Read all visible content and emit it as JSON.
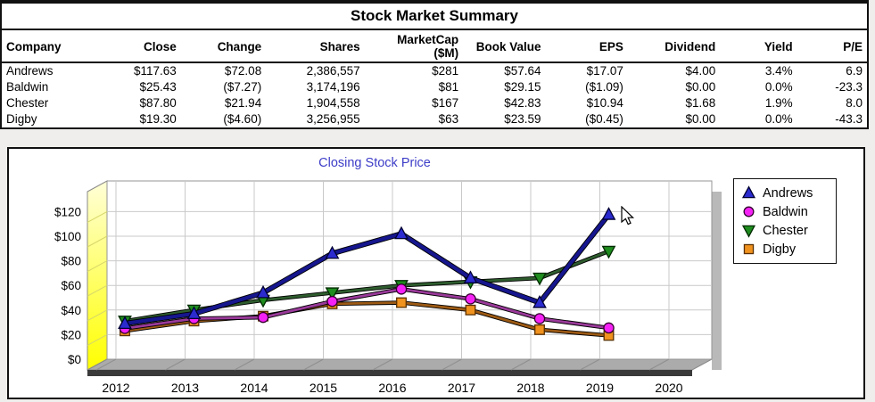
{
  "title": "Stock Market Summary",
  "table": {
    "columns": [
      {
        "label": "Company",
        "align": "left"
      },
      {
        "label": "Close",
        "align": "right"
      },
      {
        "label": "Change",
        "align": "right"
      },
      {
        "label": "Shares",
        "align": "right"
      },
      {
        "label": "MarketCap\n($M)",
        "align": "right"
      },
      {
        "label": "Book Value",
        "align": "right"
      },
      {
        "label": "EPS",
        "align": "right"
      },
      {
        "label": "Dividend",
        "align": "right"
      },
      {
        "label": "Yield",
        "align": "right"
      },
      {
        "label": "P/E",
        "align": "right"
      }
    ],
    "rows": [
      [
        "Andrews",
        "$117.63",
        "$72.08",
        "2,386,557",
        "$281",
        "$57.64",
        "$17.07",
        "$4.00",
        "3.4%",
        "6.9"
      ],
      [
        "Baldwin",
        "$25.43",
        "($7.27)",
        "3,174,196",
        "$81",
        "$29.15",
        "($1.09)",
        "$0.00",
        "0.0%",
        "-23.3"
      ],
      [
        "Chester",
        "$87.80",
        "$21.94",
        "1,904,558",
        "$167",
        "$42.83",
        "$10.94",
        "$1.68",
        "1.9%",
        "8.0"
      ],
      [
        "Digby",
        "$19.30",
        "($4.60)",
        "3,256,955",
        "$63",
        "$23.59",
        "($0.45)",
        "$0.00",
        "0.0%",
        "-43.3"
      ]
    ]
  },
  "chart_data": {
    "type": "line",
    "title": "Closing Stock Price",
    "title_color": "#3d3dc8",
    "x": [
      2012,
      2013,
      2014,
      2015,
      2016,
      2017,
      2018,
      2019
    ],
    "x_ticks": [
      2012,
      2013,
      2014,
      2015,
      2016,
      2017,
      2018,
      2019,
      2020
    ],
    "xlabel": "",
    "ylabel": "",
    "ylim": [
      0,
      146
    ],
    "y_ticks": [
      "$0",
      "$20",
      "$40",
      "$60",
      "$80",
      "$100",
      "$120"
    ],
    "y_tick_values": [
      0,
      20,
      40,
      60,
      80,
      100,
      120
    ],
    "grid": true,
    "legend_position": "right",
    "series": [
      {
        "name": "Andrews",
        "marker": "triangle-up",
        "line_color": "#16168e",
        "marker_color": "#2b2bd0",
        "marker_edge": "#000033",
        "values": [
          29,
          37,
          54,
          86,
          102,
          66,
          46,
          117.63
        ]
      },
      {
        "name": "Baldwin",
        "marker": "circle",
        "line_color": "#9a3a9a",
        "marker_color": "#f522f5",
        "marker_edge": "#33002e",
        "values": [
          25,
          33,
          34,
          47,
          57,
          49,
          33,
          25.43
        ]
      },
      {
        "name": "Chester",
        "marker": "triangle-down",
        "line_color": "#2e5c2e",
        "marker_color": "#1e8c1e",
        "marker_edge": "#002a00",
        "values": [
          31,
          40,
          48,
          54,
          60,
          63,
          66,
          87.8
        ]
      },
      {
        "name": "Digby",
        "marker": "square",
        "line_color": "#9c5a14",
        "marker_color": "#f0921e",
        "marker_edge": "#5a3000",
        "values": [
          23,
          31,
          35,
          45,
          46,
          40,
          24,
          19.3
        ]
      }
    ]
  },
  "cursor": {
    "visible": true
  }
}
